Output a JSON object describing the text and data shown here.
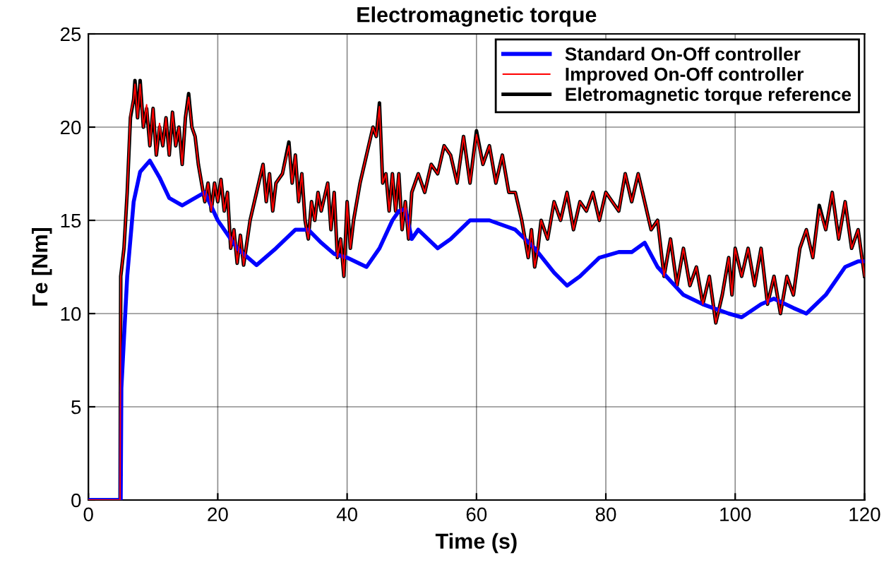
{
  "chart_data": {
    "type": "line",
    "title": "Electromagnetic torque",
    "xlabel": "Time (s)",
    "ylabel": "Γe [Nm]",
    "xlim": [
      0,
      120
    ],
    "xticks": [
      0,
      20,
      40,
      60,
      80,
      100,
      120
    ],
    "ylim": [
      0,
      25
    ],
    "yticks": [
      0,
      5,
      10,
      15,
      20,
      25
    ],
    "grid": true,
    "legend": "top right",
    "line_style": "solid",
    "series": [
      {
        "name": "Standard On-Off controller",
        "color": "#0000ff",
        "x": [
          0,
          4.9,
          5,
          5.1,
          6,
          7,
          8,
          9.5,
          11,
          12.5,
          14.5,
          16,
          18,
          20,
          23,
          26,
          29,
          32,
          34,
          36,
          38,
          40,
          43,
          45,
          47,
          48,
          49,
          50,
          51,
          54,
          56,
          59,
          62,
          66,
          69,
          72,
          74,
          76,
          79,
          82,
          84,
          86,
          88,
          92,
          95,
          99,
          101,
          104,
          106,
          109,
          111,
          114,
          117,
          119,
          120
        ],
        "values": [
          0,
          0,
          0,
          6,
          12,
          16,
          17.6,
          18.2,
          17.3,
          16.2,
          15.8,
          16.1,
          16.5,
          15,
          13.5,
          12.6,
          13.5,
          14.5,
          14.5,
          13.8,
          13.2,
          13,
          12.5,
          13.5,
          15,
          15.5,
          15.6,
          14,
          14.5,
          13.5,
          14,
          15,
          15,
          14.5,
          13.5,
          12.2,
          11.5,
          12,
          13,
          13.3,
          13.3,
          13.8,
          12.5,
          11,
          10.5,
          10,
          9.8,
          10.5,
          10.8,
          10.3,
          10,
          11,
          12.5,
          12.8,
          12.8
        ]
      },
      {
        "name": "Improved On-Off controller",
        "color": "#ff0000",
        "x": [
          0,
          4.9,
          5,
          5.5,
          6,
          6.5,
          7,
          7.2,
          7.6,
          8,
          8.5,
          9,
          9.5,
          10,
          10.5,
          11,
          11.5,
          12,
          12.5,
          13,
          13.5,
          14,
          14.5,
          15,
          15.5,
          16,
          16.5,
          17,
          17.5,
          18,
          18.5,
          19,
          19.5,
          20,
          20.5,
          21,
          21.5,
          22,
          22.5,
          23,
          23.5,
          24,
          25,
          26,
          27,
          27.5,
          28,
          28.5,
          29,
          30,
          31,
          31.5,
          32,
          32.5,
          33,
          33.5,
          34,
          34.5,
          35,
          35.5,
          36,
          37,
          37.5,
          38,
          38.5,
          39,
          39.5,
          40,
          40.5,
          41,
          42,
          43,
          44,
          44.5,
          45,
          45.5,
          46,
          46.5,
          47,
          47.5,
          48,
          48.5,
          49,
          49.5,
          50,
          51,
          52,
          53,
          54,
          55,
          56,
          57,
          58,
          59,
          60,
          61,
          62,
          63,
          64,
          65,
          66,
          67,
          68,
          68.5,
          69,
          69.5,
          70,
          71,
          72,
          73,
          74,
          75,
          76,
          77,
          78,
          79,
          80,
          81,
          82,
          83,
          84,
          85,
          86,
          87,
          88,
          89,
          90,
          91,
          92,
          93,
          94,
          95,
          96,
          97,
          98,
          99,
          99.5,
          100,
          101,
          102,
          103,
          104,
          105,
          106,
          107,
          108,
          109,
          110,
          111,
          112,
          113,
          114,
          115,
          116,
          117,
          118,
          119,
          120
        ],
        "values": [
          0,
          0,
          12,
          13.5,
          16.5,
          20.7,
          21.5,
          22.3,
          20.5,
          22.3,
          20,
          21.2,
          19,
          21,
          18.5,
          20.2,
          19,
          20.5,
          18.5,
          20.8,
          19,
          20,
          18,
          20.5,
          21.6,
          20,
          19.5,
          18,
          17,
          16,
          17,
          15.5,
          17,
          16,
          17.2,
          15.5,
          16.5,
          13.5,
          14.5,
          12.7,
          14.2,
          12.6,
          15,
          16.5,
          18,
          16,
          17.5,
          15.5,
          17,
          17.5,
          19,
          17,
          18.5,
          16,
          17.5,
          15,
          14,
          16,
          15,
          16.5,
          15.5,
          17,
          14.5,
          16.5,
          13,
          14,
          12,
          16,
          13.5,
          15,
          17,
          18.5,
          20,
          19.5,
          21.1,
          17,
          17.5,
          15.5,
          17.5,
          15.5,
          17.5,
          14.5,
          16,
          14,
          16.5,
          17.5,
          16.5,
          18,
          17.5,
          19,
          18.5,
          17,
          19.5,
          17,
          19.6,
          18,
          19,
          17,
          18.5,
          16.5,
          16.5,
          15,
          13,
          14.5,
          12.5,
          13.5,
          15,
          14,
          16,
          15,
          16.5,
          14.5,
          16,
          15.5,
          16.5,
          15,
          16.5,
          16,
          15.5,
          17.5,
          16,
          17.5,
          16,
          14.5,
          15,
          12,
          14,
          11.5,
          13.5,
          11.5,
          12.5,
          10.5,
          12,
          9.5,
          11,
          13,
          11,
          13.5,
          12,
          13.5,
          11.5,
          13.5,
          10.5,
          12,
          10,
          12,
          11,
          13.5,
          14.5,
          13,
          15.6,
          14.5,
          16.5,
          14,
          16,
          13.5,
          14.5,
          12
        ]
      },
      {
        "name": "Eletromagnetic torque reference",
        "color": "#000000",
        "x": [
          0,
          4.9,
          5,
          5.5,
          6,
          6.5,
          7,
          7.2,
          7.6,
          8,
          8.5,
          9,
          9.5,
          10,
          10.5,
          11,
          11.5,
          12,
          12.5,
          13,
          13.5,
          14,
          14.5,
          15,
          15.5,
          16,
          16.5,
          17,
          17.5,
          18,
          18.5,
          19,
          19.5,
          20,
          20.5,
          21,
          21.5,
          22,
          22.5,
          23,
          23.5,
          24,
          25,
          26,
          27,
          27.5,
          28,
          28.5,
          29,
          30,
          31,
          31.5,
          32,
          32.5,
          33,
          33.5,
          34,
          34.5,
          35,
          35.5,
          36,
          37,
          37.5,
          38,
          38.5,
          39,
          39.5,
          40,
          40.5,
          41,
          42,
          43,
          44,
          44.5,
          45,
          45.5,
          46,
          46.5,
          47,
          47.5,
          48,
          48.5,
          49,
          49.5,
          50,
          51,
          52,
          53,
          54,
          55,
          56,
          57,
          58,
          59,
          60,
          61,
          62,
          63,
          64,
          65,
          66,
          67,
          68,
          68.5,
          69,
          69.5,
          70,
          71,
          72,
          73,
          74,
          75,
          76,
          77,
          78,
          79,
          80,
          81,
          82,
          83,
          84,
          85,
          86,
          87,
          88,
          89,
          90,
          91,
          92,
          93,
          94,
          95,
          96,
          97,
          98,
          99,
          99.5,
          100,
          101,
          102,
          103,
          104,
          105,
          106,
          107,
          108,
          109,
          110,
          111,
          112,
          113,
          114,
          115,
          116,
          117,
          118,
          119,
          120
        ],
        "values": [
          0,
          0,
          12,
          13.5,
          16.5,
          20.5,
          21.5,
          22.5,
          20.5,
          22.5,
          20,
          21,
          19,
          21,
          18.5,
          20,
          19,
          20.5,
          18.5,
          20.8,
          19,
          20,
          18,
          20.5,
          21.8,
          20,
          19.5,
          18,
          17,
          16,
          17,
          15.5,
          17,
          16,
          17.2,
          15.5,
          16.5,
          13.5,
          14.5,
          12.7,
          14.2,
          12.6,
          15,
          16.5,
          18,
          16,
          17.5,
          15.5,
          17,
          17.5,
          19.2,
          17,
          18.5,
          16,
          17.5,
          15,
          14,
          16,
          15,
          16.5,
          15.5,
          17,
          14.5,
          16.5,
          13,
          14,
          12,
          16,
          13.5,
          15,
          17,
          18.5,
          20,
          19.5,
          21.3,
          17,
          17.5,
          15.5,
          17.5,
          15.5,
          17.5,
          14.5,
          16,
          14,
          16.5,
          17.5,
          16.5,
          18,
          17.5,
          19,
          18.5,
          17,
          19.5,
          17,
          19.8,
          18,
          19,
          17,
          18.5,
          16.5,
          16.5,
          15,
          13,
          14.5,
          12.5,
          13.5,
          15,
          14,
          16,
          15,
          16.5,
          14.5,
          16,
          15.5,
          16.5,
          15,
          16.5,
          16,
          15.5,
          17.5,
          16,
          17.5,
          16,
          14.5,
          15,
          12,
          14,
          11.5,
          13.5,
          11.5,
          12.5,
          10.5,
          12,
          9.5,
          11,
          13,
          11,
          13.5,
          12,
          13.5,
          11.5,
          13.5,
          10.5,
          12,
          10,
          12,
          11,
          13.5,
          14.5,
          13,
          15.8,
          14.5,
          16.5,
          14,
          16,
          13.5,
          14.5,
          12
        ]
      }
    ]
  }
}
